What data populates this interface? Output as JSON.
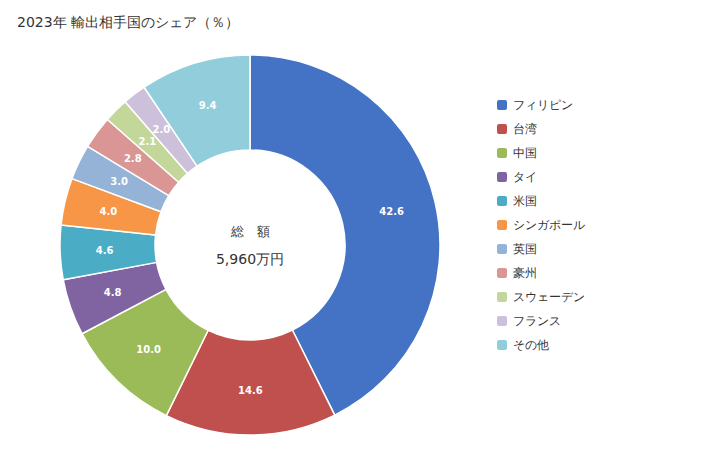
{
  "chart_data": {
    "type": "donut",
    "title": "2023年 輸出相手国のシェア（％）",
    "annotations": [
      "総　額",
      "5,960万円"
    ],
    "categories": [
      "フィリピン",
      "台湾",
      "中国",
      "タイ",
      "米国",
      "シンガポール",
      "英国",
      "豪州",
      "スウェーデン",
      "フランス",
      "その他"
    ],
    "values": [
      42.6,
      14.6,
      10.0,
      4.8,
      4.6,
      4.0,
      3.0,
      2.8,
      2.1,
      2.0,
      9.4
    ],
    "value_labels": [
      "42.6",
      "14.6",
      "10.0",
      "4.8",
      "4.6",
      "4.0",
      "3.0",
      "2.8",
      "2.1",
      "2.0",
      "9.4"
    ],
    "colors": [
      "#4472C4",
      "#C0504D",
      "#9BBB59",
      "#8064A2",
      "#4BACC6",
      "#F79646",
      "#95B3D7",
      "#DA9694",
      "#C4D79B",
      "#CCC0DA",
      "#92CDDC"
    ],
    "data_labels": true,
    "legend": "right"
  }
}
